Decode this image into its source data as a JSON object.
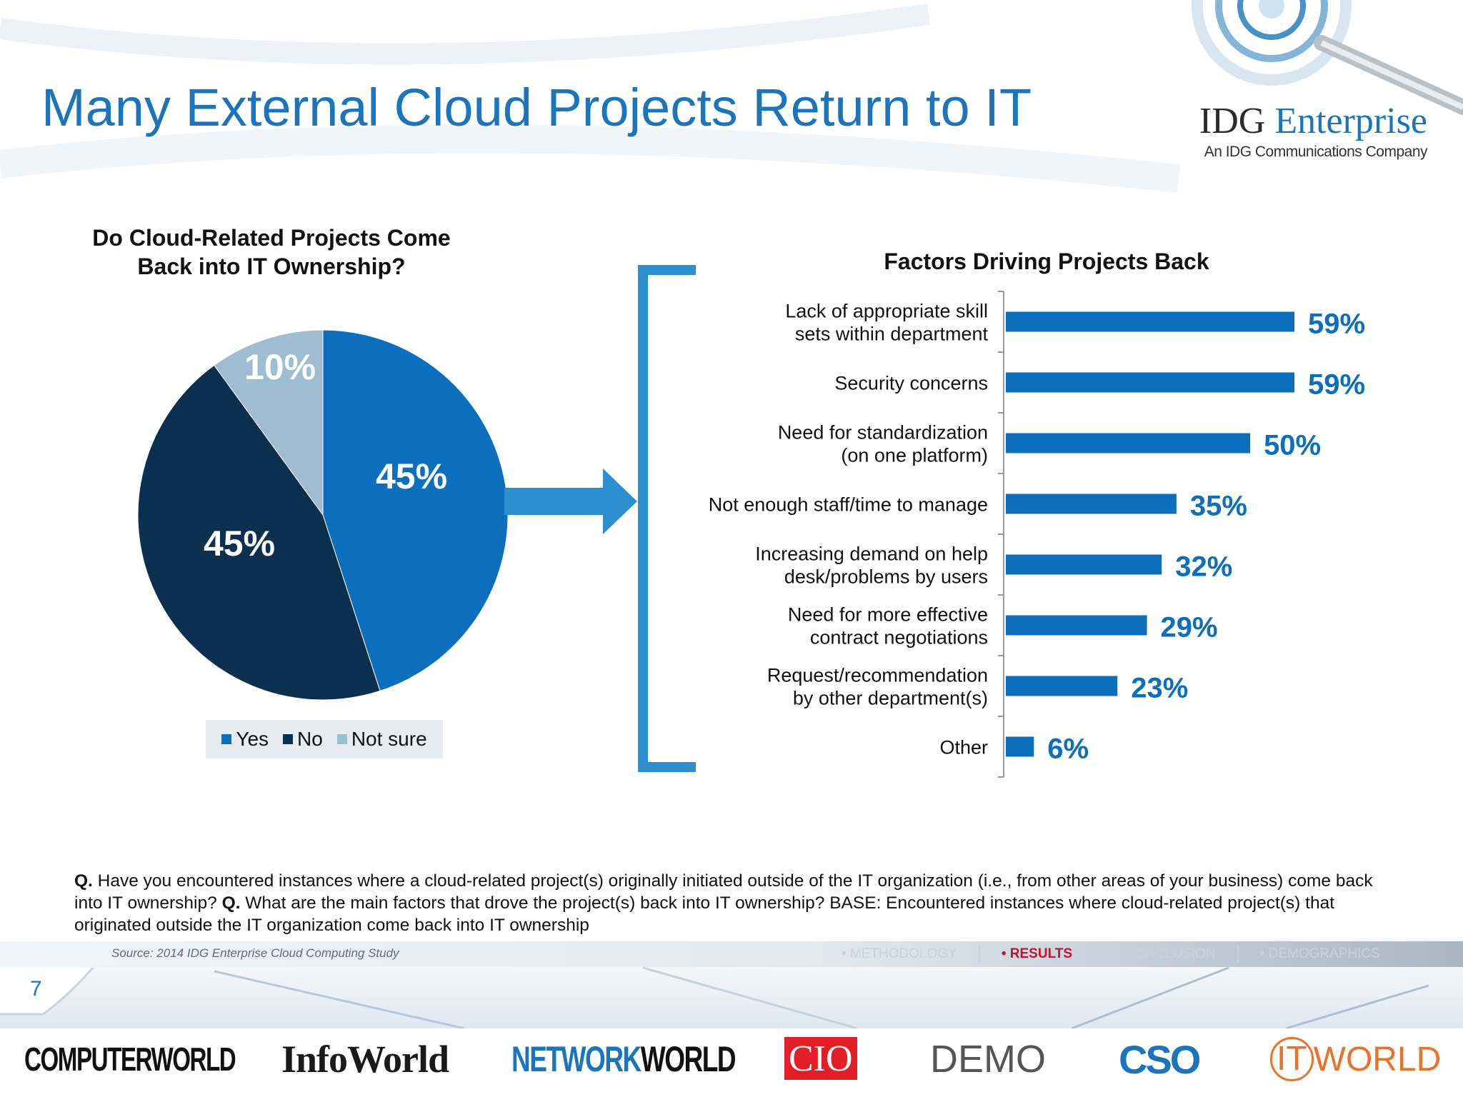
{
  "slide": {
    "title": "Many External Cloud Projects Return to IT",
    "page_number": "7",
    "source": "Source: 2014 IDG Enterprise Cloud Computing Study",
    "question_parts": [
      {
        "bold": true,
        "text": "Q."
      },
      {
        "bold": false,
        "text": " Have you encountered instances where a cloud-related project(s) originally initiated outside of the IT organization (i.e., from other areas of your business) come back into IT ownership? "
      },
      {
        "bold": true,
        "text": "Q."
      },
      {
        "bold": false,
        "text": " What are the main factors that drove the project(s) back into IT ownership? BASE: Encountered instances where cloud-related project(s) that originated outside the IT organization come back  into IT ownership"
      }
    ]
  },
  "brand": {
    "name_part1": "IDG ",
    "name_part2": "Enterprise",
    "tagline": "An IDG Communications Company"
  },
  "nav": {
    "items": [
      "• METHODOLOGY",
      "• RESULTS",
      "• CONCLUSION",
      "• DEMOGRAPHICS"
    ],
    "active_index": 1
  },
  "footer_logos": [
    "COMPUTERWORLD",
    "InfoWorld",
    "NETWORK",
    "WORLD",
    "CIO",
    "DEMO",
    "CSO",
    "IT",
    "WORLD"
  ],
  "colors": {
    "title_blue": "#1b75bc",
    "bar_blue": "#0b6fbd",
    "yes": "#0b6fbd",
    "no": "#0b2f4f",
    "not_sure": "#9fbdd1",
    "arrow": "#2e8fd0",
    "results_red": "#c8102e"
  },
  "chart_data": [
    {
      "type": "pie",
      "title": "Do Cloud-Related Projects Come Back into IT Ownership?",
      "title_lines": [
        "Do Cloud-Related Projects Come",
        "Back into IT Ownership?"
      ],
      "slices": [
        {
          "label": "Yes",
          "value": 45,
          "display": "45%",
          "color": "#0b6fbd"
        },
        {
          "label": "No",
          "value": 45,
          "display": "45%",
          "color": "#0b2f4f"
        },
        {
          "label": "Not sure",
          "value": 10,
          "display": "10%",
          "color": "#9fbdd1"
        }
      ],
      "legend": [
        "Yes",
        "No",
        "Not sure"
      ],
      "legend_position": "bottom"
    },
    {
      "type": "bar",
      "orientation": "horizontal",
      "title": "Factors Driving Projects Back",
      "categories": [
        [
          "Lack of appropriate skill",
          "sets within department"
        ],
        [
          "Security concerns"
        ],
        [
          "Need for standardization",
          "(on one platform)"
        ],
        [
          "Not enough staff/time to manage"
        ],
        [
          "Increasing demand on help",
          "desk/problems by users"
        ],
        [
          "Need for more effective",
          "contract negotiations"
        ],
        [
          "Request/recommendation",
          "by other department(s)"
        ],
        [
          "Other"
        ]
      ],
      "values": [
        59,
        59,
        50,
        35,
        32,
        29,
        23,
        6
      ],
      "value_labels": [
        "59%",
        "59%",
        "50%",
        "35%",
        "32%",
        "29%",
        "23%",
        "6%"
      ],
      "xlim": [
        0,
        60
      ]
    }
  ]
}
